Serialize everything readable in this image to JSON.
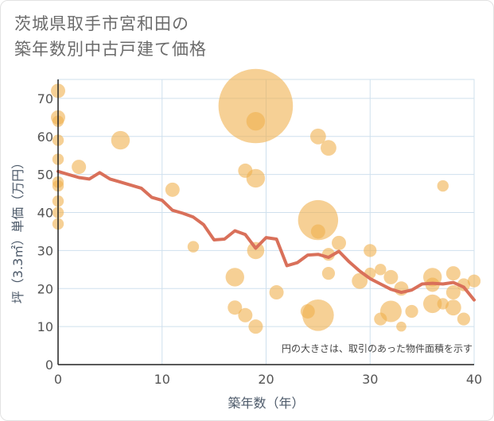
{
  "title": {
    "line1": "茨城県取手市宮和田の",
    "line2": "築年数別中古戸建て価格"
  },
  "chart_data": {
    "type": "scatter",
    "title": "茨城県取手市宮和田の築年数別中古戸建て価格",
    "xlabel": "築年数（年）",
    "ylabel": "坪（3.3㎡）単価（万円）",
    "xlim": [
      0,
      40
    ],
    "ylim": [
      0,
      75
    ],
    "xticks": [
      "0",
      "10",
      "20",
      "30",
      "40"
    ],
    "yticks": [
      "0",
      "10",
      "20",
      "30",
      "40",
      "50",
      "60",
      "70"
    ],
    "grid": true,
    "note": "円の大きさは、取引のあった物件面積を示す",
    "colors": {
      "bubble": "#f0b04f",
      "line": "#d9705a",
      "grid": "#cfe0ee"
    },
    "series": [
      {
        "type": "bubble",
        "points": [
          {
            "x": 0,
            "y": 72,
            "s": 1
          },
          {
            "x": 0,
            "y": 65,
            "s": 1
          },
          {
            "x": 0,
            "y": 64,
            "s": 0.8
          },
          {
            "x": 0,
            "y": 59,
            "s": 0.8
          },
          {
            "x": 0,
            "y": 54,
            "s": 0.8
          },
          {
            "x": 0,
            "y": 48,
            "s": 0.8
          },
          {
            "x": 0,
            "y": 47,
            "s": 0.8
          },
          {
            "x": 0,
            "y": 43,
            "s": 0.8
          },
          {
            "x": 0,
            "y": 40,
            "s": 0.8
          },
          {
            "x": 0,
            "y": 37,
            "s": 0.8
          },
          {
            "x": 2,
            "y": 52,
            "s": 1
          },
          {
            "x": 6,
            "y": 59,
            "s": 1.3
          },
          {
            "x": 11,
            "y": 46,
            "s": 1
          },
          {
            "x": 13,
            "y": 31,
            "s": 0.8
          },
          {
            "x": 17,
            "y": 23,
            "s": 1.3
          },
          {
            "x": 17,
            "y": 15,
            "s": 1
          },
          {
            "x": 18,
            "y": 51,
            "s": 1
          },
          {
            "x": 18,
            "y": 13,
            "s": 1
          },
          {
            "x": 19,
            "y": 68,
            "s": 5.2
          },
          {
            "x": 19,
            "y": 64,
            "s": 1.3
          },
          {
            "x": 19,
            "y": 49,
            "s": 1.3
          },
          {
            "x": 19,
            "y": 30,
            "s": 1.2
          },
          {
            "x": 19,
            "y": 10,
            "s": 1
          },
          {
            "x": 21,
            "y": 19,
            "s": 1
          },
          {
            "x": 24,
            "y": 14,
            "s": 1
          },
          {
            "x": 25,
            "y": 60,
            "s": 1.1
          },
          {
            "x": 25,
            "y": 38,
            "s": 2.8
          },
          {
            "x": 25,
            "y": 35,
            "s": 1
          },
          {
            "x": 25,
            "y": 13,
            "s": 2.2
          },
          {
            "x": 26,
            "y": 57,
            "s": 1.1
          },
          {
            "x": 26,
            "y": 29,
            "s": 0.9
          },
          {
            "x": 26,
            "y": 24,
            "s": 0.9
          },
          {
            "x": 27,
            "y": 32,
            "s": 1
          },
          {
            "x": 29,
            "y": 22,
            "s": 1.1
          },
          {
            "x": 30,
            "y": 30,
            "s": 0.9
          },
          {
            "x": 30,
            "y": 24,
            "s": 0.8
          },
          {
            "x": 31,
            "y": 25,
            "s": 0.8
          },
          {
            "x": 31,
            "y": 12,
            "s": 0.9
          },
          {
            "x": 32,
            "y": 23,
            "s": 1
          },
          {
            "x": 32,
            "y": 14,
            "s": 1.5
          },
          {
            "x": 33,
            "y": 20,
            "s": 1
          },
          {
            "x": 33,
            "y": 10,
            "s": 0.7
          },
          {
            "x": 34,
            "y": 14,
            "s": 0.9
          },
          {
            "x": 36,
            "y": 23,
            "s": 1.3
          },
          {
            "x": 36,
            "y": 21,
            "s": 1
          },
          {
            "x": 36,
            "y": 16,
            "s": 1.3
          },
          {
            "x": 37,
            "y": 47,
            "s": 0.8
          },
          {
            "x": 37,
            "y": 16,
            "s": 0.8
          },
          {
            "x": 38,
            "y": 24,
            "s": 1
          },
          {
            "x": 38,
            "y": 19,
            "s": 1
          },
          {
            "x": 38,
            "y": 15,
            "s": 1.1
          },
          {
            "x": 39,
            "y": 21,
            "s": 0.9
          },
          {
            "x": 39,
            "y": 12,
            "s": 0.9
          },
          {
            "x": 40,
            "y": 22,
            "s": 0.9
          }
        ]
      },
      {
        "type": "line",
        "points": [
          {
            "x": 0,
            "y": 50.8
          },
          {
            "x": 1,
            "y": 50
          },
          {
            "x": 2,
            "y": 49.2
          },
          {
            "x": 3,
            "y": 48.8
          },
          {
            "x": 4,
            "y": 50.5
          },
          {
            "x": 5,
            "y": 48.8
          },
          {
            "x": 6,
            "y": 48
          },
          {
            "x": 7,
            "y": 47.2
          },
          {
            "x": 8,
            "y": 46.4
          },
          {
            "x": 9,
            "y": 44
          },
          {
            "x": 10,
            "y": 43.2
          },
          {
            "x": 11,
            "y": 40.6
          },
          {
            "x": 12,
            "y": 39.8
          },
          {
            "x": 13,
            "y": 38.8
          },
          {
            "x": 14,
            "y": 36.8
          },
          {
            "x": 15,
            "y": 32.8
          },
          {
            "x": 16,
            "y": 33
          },
          {
            "x": 17,
            "y": 35.2
          },
          {
            "x": 18,
            "y": 34.2
          },
          {
            "x": 19,
            "y": 30.6
          },
          {
            "x": 20,
            "y": 33.4
          },
          {
            "x": 21,
            "y": 33
          },
          {
            "x": 22,
            "y": 26
          },
          {
            "x": 23,
            "y": 26.8
          },
          {
            "x": 24,
            "y": 28.8
          },
          {
            "x": 25,
            "y": 29
          },
          {
            "x": 26,
            "y": 28.2
          },
          {
            "x": 27,
            "y": 29.8
          },
          {
            "x": 28,
            "y": 27
          },
          {
            "x": 29,
            "y": 24.6
          },
          {
            "x": 30,
            "y": 22.6
          },
          {
            "x": 31,
            "y": 21.2
          },
          {
            "x": 32,
            "y": 19.8
          },
          {
            "x": 33,
            "y": 19
          },
          {
            "x": 34,
            "y": 19.6
          },
          {
            "x": 35,
            "y": 21.2
          },
          {
            "x": 36,
            "y": 21.4
          },
          {
            "x": 37,
            "y": 21.2
          },
          {
            "x": 38,
            "y": 21.6
          },
          {
            "x": 39,
            "y": 20.4
          },
          {
            "x": 40,
            "y": 17
          }
        ]
      }
    ]
  }
}
